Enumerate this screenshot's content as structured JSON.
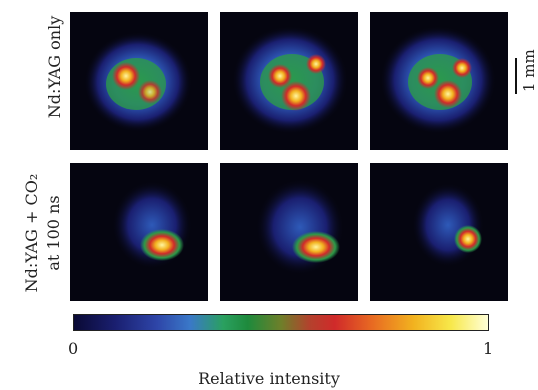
{
  "rows": [
    {
      "label_line1": "Nd:YAG only",
      "label_line2": ""
    },
    {
      "label_line1": "Nd:YAG + CO₂",
      "label_line2": "at 100 ns"
    }
  ],
  "scale_bar": {
    "label": "1 mm"
  },
  "colorbar": {
    "title": "Relative intensity",
    "min_label": "0",
    "max_label": "1",
    "colormap": "dark-blue → blue → green → red → orange → yellow → white"
  },
  "colors": {
    "background": "#050510"
  },
  "images": [
    {
      "row": 0,
      "col": 0
    },
    {
      "row": 0,
      "col": 1
    },
    {
      "row": 0,
      "col": 2
    },
    {
      "row": 1,
      "col": 0
    },
    {
      "row": 1,
      "col": 1
    },
    {
      "row": 1,
      "col": 2
    }
  ]
}
